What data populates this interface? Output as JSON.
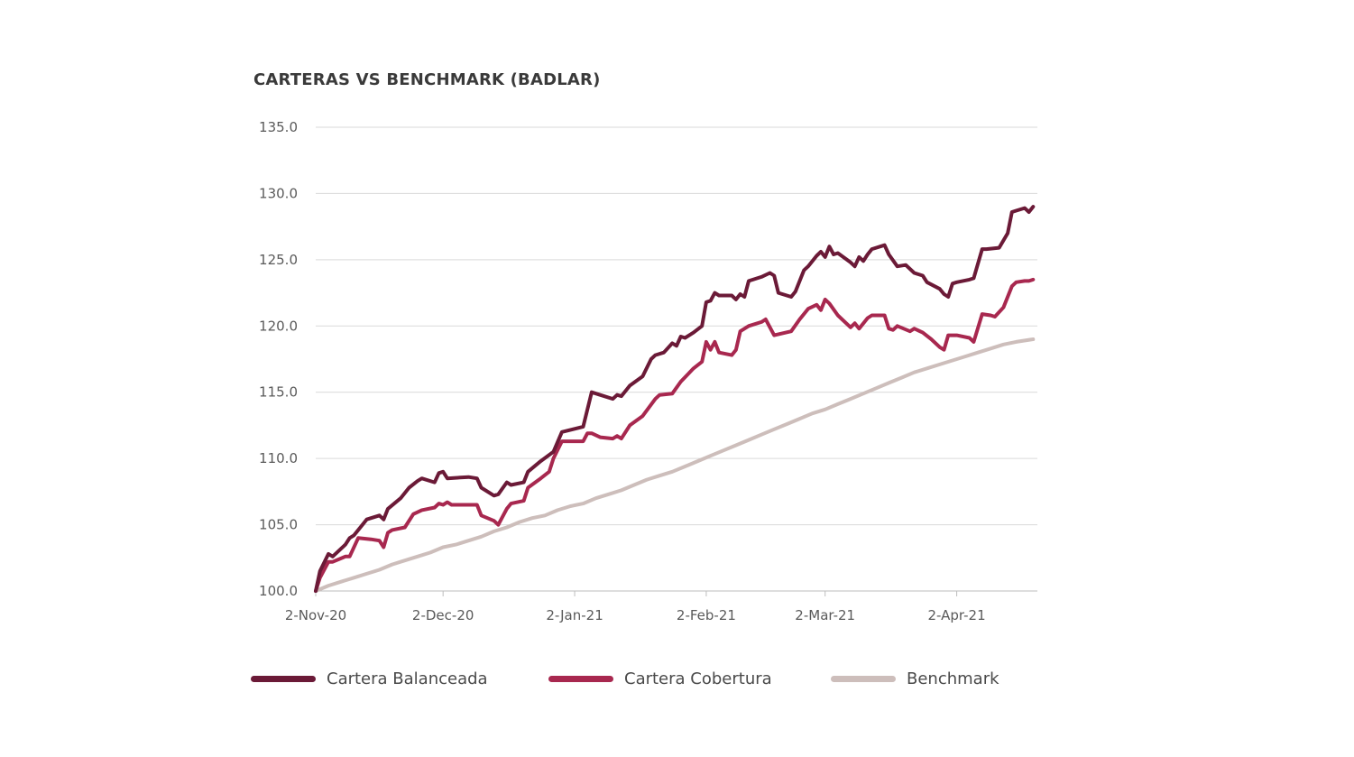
{
  "chart_data": {
    "type": "line",
    "title": "CARTERAS VS BENCHMARK (BADLAR)",
    "xlabel": "",
    "ylabel": "",
    "ylim": [
      100,
      135
    ],
    "yticks": [
      "100.0",
      "105.0",
      "110.0",
      "115.0",
      "120.0",
      "125.0",
      "130.0",
      "135.0"
    ],
    "ytick_values": [
      100,
      105,
      110,
      115,
      120,
      125,
      130,
      135
    ],
    "xlim": [
      "2020-11-02",
      "2021-04-21"
    ],
    "xticks": [
      {
        "label": "2-Nov-20",
        "date": "2020-11-02"
      },
      {
        "label": "2-Dec-20",
        "date": "2020-12-02"
      },
      {
        "label": "2-Jan-21",
        "date": "2021-01-02"
      },
      {
        "label": "2-Feb-21",
        "date": "2021-02-02"
      },
      {
        "label": "2-Mar-21",
        "date": "2021-03-02"
      },
      {
        "label": "2-Apr-21",
        "date": "2021-04-02"
      }
    ],
    "grid": "horizontal",
    "legend_position": "bottom",
    "series": [
      {
        "name": "Cartera Balanceada",
        "color": "#6b1a37",
        "points": [
          [
            "2020-11-02",
            100.0
          ],
          [
            "2020-11-03",
            101.5
          ],
          [
            "2020-11-05",
            102.8
          ],
          [
            "2020-11-06",
            102.6
          ],
          [
            "2020-11-09",
            103.5
          ],
          [
            "2020-11-10",
            104.0
          ],
          [
            "2020-11-11",
            104.2
          ],
          [
            "2020-11-13",
            105.0
          ],
          [
            "2020-11-14",
            105.4
          ],
          [
            "2020-11-17",
            105.7
          ],
          [
            "2020-11-18",
            105.4
          ],
          [
            "2020-11-19",
            106.2
          ],
          [
            "2020-11-22",
            107.0
          ],
          [
            "2020-11-24",
            107.8
          ],
          [
            "2020-11-26",
            108.3
          ],
          [
            "2020-11-27",
            108.5
          ],
          [
            "2020-11-30",
            108.2
          ],
          [
            "2020-12-01",
            108.9
          ],
          [
            "2020-12-02",
            109.0
          ],
          [
            "2020-12-03",
            108.5
          ],
          [
            "2020-12-08",
            108.6
          ],
          [
            "2020-12-10",
            108.5
          ],
          [
            "2020-12-11",
            107.8
          ],
          [
            "2020-12-14",
            107.2
          ],
          [
            "2020-12-15",
            107.3
          ],
          [
            "2020-12-17",
            108.2
          ],
          [
            "2020-12-18",
            108.0
          ],
          [
            "2020-12-21",
            108.2
          ],
          [
            "2020-12-22",
            109.0
          ],
          [
            "2020-12-25",
            109.8
          ],
          [
            "2020-12-28",
            110.5
          ],
          [
            "2020-12-30",
            112.0
          ],
          [
            "2021-01-04",
            112.4
          ],
          [
            "2021-01-06",
            115.0
          ],
          [
            "2021-01-08",
            114.8
          ],
          [
            "2021-01-11",
            114.5
          ],
          [
            "2021-01-12",
            114.8
          ],
          [
            "2021-01-13",
            114.7
          ],
          [
            "2021-01-15",
            115.5
          ],
          [
            "2021-01-18",
            116.2
          ],
          [
            "2021-01-20",
            117.5
          ],
          [
            "2021-01-21",
            117.8
          ],
          [
            "2021-01-23",
            118.0
          ],
          [
            "2021-01-25",
            118.7
          ],
          [
            "2021-01-26",
            118.5
          ],
          [
            "2021-01-27",
            119.2
          ],
          [
            "2021-01-28",
            119.1
          ],
          [
            "2021-01-30",
            119.5
          ],
          [
            "2021-02-01",
            120.0
          ],
          [
            "2021-02-02",
            121.8
          ],
          [
            "2021-02-03",
            121.9
          ],
          [
            "2021-02-04",
            122.5
          ],
          [
            "2021-02-05",
            122.3
          ],
          [
            "2021-02-08",
            122.3
          ],
          [
            "2021-02-09",
            122.0
          ],
          [
            "2021-02-10",
            122.4
          ],
          [
            "2021-02-11",
            122.2
          ],
          [
            "2021-02-12",
            123.4
          ],
          [
            "2021-02-15",
            123.7
          ],
          [
            "2021-02-17",
            124.0
          ],
          [
            "2021-02-18",
            123.8
          ],
          [
            "2021-02-19",
            122.5
          ],
          [
            "2021-02-22",
            122.2
          ],
          [
            "2021-02-23",
            122.6
          ],
          [
            "2021-02-25",
            124.2
          ],
          [
            "2021-02-26",
            124.5
          ],
          [
            "2021-02-28",
            125.3
          ],
          [
            "2021-03-01",
            125.6
          ],
          [
            "2021-03-02",
            125.2
          ],
          [
            "2021-03-03",
            126.0
          ],
          [
            "2021-03-04",
            125.4
          ],
          [
            "2021-03-05",
            125.5
          ],
          [
            "2021-03-08",
            124.8
          ],
          [
            "2021-03-09",
            124.5
          ],
          [
            "2021-03-10",
            125.2
          ],
          [
            "2021-03-11",
            124.9
          ],
          [
            "2021-03-12",
            125.4
          ],
          [
            "2021-03-13",
            125.8
          ],
          [
            "2021-03-16",
            126.1
          ],
          [
            "2021-03-17",
            125.4
          ],
          [
            "2021-03-19",
            124.5
          ],
          [
            "2021-03-21",
            124.6
          ],
          [
            "2021-03-23",
            124.0
          ],
          [
            "2021-03-25",
            123.8
          ],
          [
            "2021-03-26",
            123.3
          ],
          [
            "2021-03-29",
            122.8
          ],
          [
            "2021-03-30",
            122.4
          ],
          [
            "2021-03-31",
            122.2
          ],
          [
            "2021-04-01",
            123.2
          ],
          [
            "2021-04-02",
            123.3
          ],
          [
            "2021-04-05",
            123.5
          ],
          [
            "2021-04-06",
            123.6
          ],
          [
            "2021-04-08",
            125.8
          ],
          [
            "2021-04-09",
            125.8
          ],
          [
            "2021-04-12",
            125.9
          ],
          [
            "2021-04-14",
            127.0
          ],
          [
            "2021-04-15",
            128.6
          ],
          [
            "2021-04-16",
            128.7
          ],
          [
            "2021-04-18",
            128.9
          ],
          [
            "2021-04-19",
            128.6
          ],
          [
            "2021-04-20",
            129.0
          ]
        ]
      },
      {
        "name": "Cartera Cobertura",
        "color": "#a8284f",
        "points": [
          [
            "2020-11-02",
            100.0
          ],
          [
            "2020-11-03",
            101.0
          ],
          [
            "2020-11-05",
            102.2
          ],
          [
            "2020-11-06",
            102.2
          ],
          [
            "2020-11-09",
            102.6
          ],
          [
            "2020-11-10",
            102.6
          ],
          [
            "2020-11-12",
            104.0
          ],
          [
            "2020-11-15",
            103.9
          ],
          [
            "2020-11-17",
            103.8
          ],
          [
            "2020-11-18",
            103.3
          ],
          [
            "2020-11-19",
            104.4
          ],
          [
            "2020-11-20",
            104.6
          ],
          [
            "2020-11-23",
            104.8
          ],
          [
            "2020-11-25",
            105.8
          ],
          [
            "2020-11-27",
            106.1
          ],
          [
            "2020-11-30",
            106.3
          ],
          [
            "2020-12-01",
            106.6
          ],
          [
            "2020-12-02",
            106.5
          ],
          [
            "2020-12-03",
            106.7
          ],
          [
            "2020-12-04",
            106.5
          ],
          [
            "2020-12-10",
            106.5
          ],
          [
            "2020-12-11",
            105.7
          ],
          [
            "2020-12-14",
            105.3
          ],
          [
            "2020-12-15",
            105.0
          ],
          [
            "2020-12-17",
            106.2
          ],
          [
            "2020-12-18",
            106.6
          ],
          [
            "2020-12-21",
            106.8
          ],
          [
            "2020-12-22",
            107.8
          ],
          [
            "2020-12-25",
            108.5
          ],
          [
            "2020-12-27",
            109.0
          ],
          [
            "2020-12-28",
            110.0
          ],
          [
            "2020-12-30",
            111.3
          ],
          [
            "2021-01-04",
            111.3
          ],
          [
            "2021-01-05",
            111.9
          ],
          [
            "2021-01-06",
            111.9
          ],
          [
            "2021-01-08",
            111.6
          ],
          [
            "2021-01-11",
            111.5
          ],
          [
            "2021-01-12",
            111.7
          ],
          [
            "2021-01-13",
            111.5
          ],
          [
            "2021-01-15",
            112.5
          ],
          [
            "2021-01-18",
            113.2
          ],
          [
            "2021-01-21",
            114.5
          ],
          [
            "2021-01-22",
            114.8
          ],
          [
            "2021-01-25",
            114.9
          ],
          [
            "2021-01-27",
            115.8
          ],
          [
            "2021-01-30",
            116.8
          ],
          [
            "2021-02-01",
            117.3
          ],
          [
            "2021-02-02",
            118.8
          ],
          [
            "2021-02-03",
            118.2
          ],
          [
            "2021-02-04",
            118.8
          ],
          [
            "2021-02-05",
            118.0
          ],
          [
            "2021-02-08",
            117.8
          ],
          [
            "2021-02-09",
            118.2
          ],
          [
            "2021-02-10",
            119.6
          ],
          [
            "2021-02-12",
            120.0
          ],
          [
            "2021-02-15",
            120.3
          ],
          [
            "2021-02-16",
            120.5
          ],
          [
            "2021-02-18",
            119.3
          ],
          [
            "2021-02-22",
            119.6
          ],
          [
            "2021-02-24",
            120.5
          ],
          [
            "2021-02-26",
            121.3
          ],
          [
            "2021-02-28",
            121.6
          ],
          [
            "2021-03-01",
            121.2
          ],
          [
            "2021-03-02",
            122.0
          ],
          [
            "2021-03-03",
            121.7
          ],
          [
            "2021-03-05",
            120.8
          ],
          [
            "2021-03-08",
            119.9
          ],
          [
            "2021-03-09",
            120.2
          ],
          [
            "2021-03-10",
            119.8
          ],
          [
            "2021-03-12",
            120.6
          ],
          [
            "2021-03-13",
            120.8
          ],
          [
            "2021-03-16",
            120.8
          ],
          [
            "2021-03-17",
            119.8
          ],
          [
            "2021-03-18",
            119.7
          ],
          [
            "2021-03-19",
            120.0
          ],
          [
            "2021-03-22",
            119.6
          ],
          [
            "2021-03-23",
            119.8
          ],
          [
            "2021-03-25",
            119.5
          ],
          [
            "2021-03-27",
            119.0
          ],
          [
            "2021-03-29",
            118.4
          ],
          [
            "2021-03-30",
            118.2
          ],
          [
            "2021-03-31",
            119.3
          ],
          [
            "2021-04-02",
            119.3
          ],
          [
            "2021-04-05",
            119.1
          ],
          [
            "2021-04-06",
            118.8
          ],
          [
            "2021-04-08",
            120.9
          ],
          [
            "2021-04-10",
            120.8
          ],
          [
            "2021-04-11",
            120.7
          ],
          [
            "2021-04-13",
            121.4
          ],
          [
            "2021-04-15",
            123.0
          ],
          [
            "2021-04-16",
            123.3
          ],
          [
            "2021-04-18",
            123.4
          ],
          [
            "2021-04-19",
            123.4
          ],
          [
            "2021-04-20",
            123.5
          ]
        ]
      },
      {
        "name": "Benchmark",
        "color": "#cdbebb",
        "points": [
          [
            "2020-11-02",
            100.0
          ],
          [
            "2020-11-05",
            100.4
          ],
          [
            "2020-11-08",
            100.7
          ],
          [
            "2020-11-11",
            101.0
          ],
          [
            "2020-11-14",
            101.3
          ],
          [
            "2020-11-17",
            101.6
          ],
          [
            "2020-11-20",
            102.0
          ],
          [
            "2020-11-23",
            102.3
          ],
          [
            "2020-11-26",
            102.6
          ],
          [
            "2020-11-29",
            102.9
          ],
          [
            "2020-12-02",
            103.3
          ],
          [
            "2020-12-05",
            103.5
          ],
          [
            "2020-12-08",
            103.8
          ],
          [
            "2020-12-11",
            104.1
          ],
          [
            "2020-12-14",
            104.5
          ],
          [
            "2020-12-17",
            104.8
          ],
          [
            "2020-12-20",
            105.2
          ],
          [
            "2020-12-23",
            105.5
          ],
          [
            "2020-12-26",
            105.7
          ],
          [
            "2020-12-29",
            106.1
          ],
          [
            "2021-01-01",
            106.4
          ],
          [
            "2021-01-04",
            106.6
          ],
          [
            "2021-01-07",
            107.0
          ],
          [
            "2021-01-10",
            107.3
          ],
          [
            "2021-01-13",
            107.6
          ],
          [
            "2021-01-16",
            108.0
          ],
          [
            "2021-01-19",
            108.4
          ],
          [
            "2021-01-22",
            108.7
          ],
          [
            "2021-01-25",
            109.0
          ],
          [
            "2021-01-28",
            109.4
          ],
          [
            "2021-01-31",
            109.8
          ],
          [
            "2021-02-03",
            110.2
          ],
          [
            "2021-02-06",
            110.6
          ],
          [
            "2021-02-09",
            111.0
          ],
          [
            "2021-02-12",
            111.4
          ],
          [
            "2021-02-15",
            111.8
          ],
          [
            "2021-02-18",
            112.2
          ],
          [
            "2021-02-21",
            112.6
          ],
          [
            "2021-02-24",
            113.0
          ],
          [
            "2021-02-27",
            113.4
          ],
          [
            "2021-03-02",
            113.7
          ],
          [
            "2021-03-05",
            114.1
          ],
          [
            "2021-03-08",
            114.5
          ],
          [
            "2021-03-11",
            114.9
          ],
          [
            "2021-03-14",
            115.3
          ],
          [
            "2021-03-17",
            115.7
          ],
          [
            "2021-03-20",
            116.1
          ],
          [
            "2021-03-23",
            116.5
          ],
          [
            "2021-03-26",
            116.8
          ],
          [
            "2021-03-29",
            117.1
          ],
          [
            "2021-04-01",
            117.4
          ],
          [
            "2021-04-04",
            117.7
          ],
          [
            "2021-04-07",
            118.0
          ],
          [
            "2021-04-10",
            118.3
          ],
          [
            "2021-04-13",
            118.6
          ],
          [
            "2021-04-16",
            118.8
          ],
          [
            "2021-04-20",
            119.0
          ]
        ]
      }
    ]
  }
}
